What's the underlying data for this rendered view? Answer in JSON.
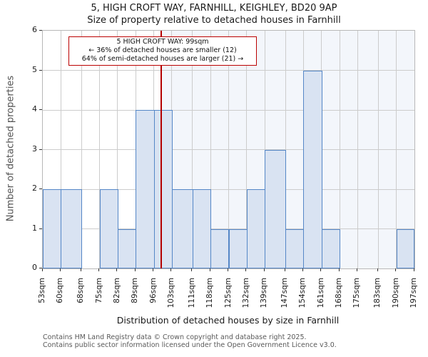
{
  "page": {
    "title": "5, HIGH CROFT WAY, FARNHILL, KEIGHLEY, BD20 9AP",
    "subtitle": "Size of property relative to detached houses in Farnhill",
    "footer_line1": "Contains HM Land Registry data © Crown copyright and database right 2025.",
    "footer_line2": "Contains public sector information licensed under the Open Government Licence v3.0."
  },
  "annotation": {
    "line1": "5 HIGH CROFT WAY: 99sqm",
    "line2": "← 36% of detached houses are smaller (12)",
    "line3": "64% of semi-detached houses are larger (21) →"
  },
  "chart_data": {
    "type": "bar",
    "subtype": "histogram",
    "title": "5, HIGH CROFT WAY, FARNHILL, KEIGHLEY, BD20 9AP",
    "subtitle": "Size of property relative to detached houses in Farnhill",
    "xlabel": "Distribution of detached houses by size in Farnhill",
    "ylabel": "Number of detached properties",
    "bin_edges": [
      53,
      60,
      68,
      75,
      82,
      89,
      96,
      103,
      111,
      118,
      125,
      132,
      139,
      147,
      154,
      161,
      168,
      175,
      183,
      190,
      197
    ],
    "x_tick_labels": [
      "53sqm",
      "60sqm",
      "68sqm",
      "75sqm",
      "82sqm",
      "89sqm",
      "96sqm",
      "103sqm",
      "111sqm",
      "118sqm",
      "125sqm",
      "132sqm",
      "139sqm",
      "147sqm",
      "154sqm",
      "161sqm",
      "168sqm",
      "175sqm",
      "183sqm",
      "190sqm",
      "197sqm"
    ],
    "values": [
      2,
      2,
      0,
      2,
      1,
      4,
      4,
      2,
      2,
      1,
      1,
      2,
      3,
      1,
      5,
      1,
      0,
      0,
      0,
      1
    ],
    "y_ticks": [
      0,
      1,
      2,
      3,
      4,
      5,
      6
    ],
    "ylim": [
      0,
      6
    ],
    "xlim": [
      53,
      197
    ],
    "grid": true,
    "marker_value": 99,
    "marker_label": "99sqm",
    "legend": "none",
    "colors": {
      "bar_fill": "#d9e3f2",
      "bar_border": "#5587c7",
      "marker_line": "#b40000",
      "annotation_border": "#bb0000",
      "highlight_bg": "#f3f6fb",
      "grid": "#cccccc",
      "tick": "#333333"
    }
  }
}
